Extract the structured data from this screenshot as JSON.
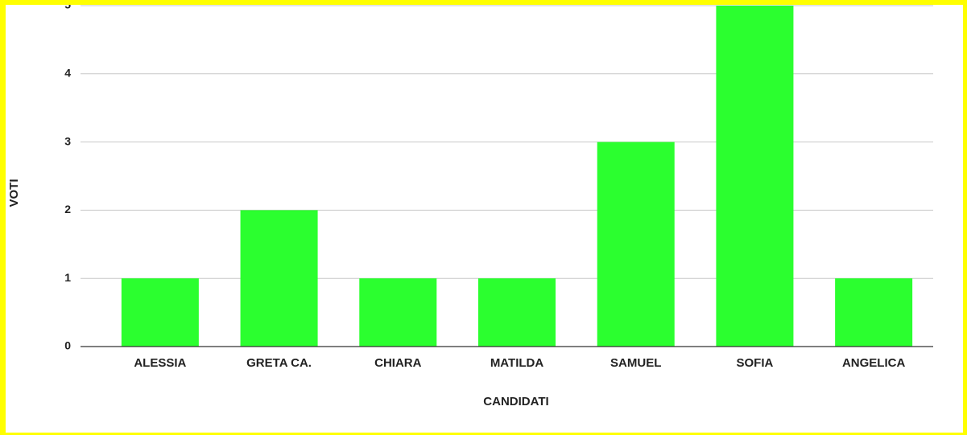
{
  "chart_data": {
    "type": "bar",
    "x_label": "CANDIDATI",
    "y_label": "VOTI",
    "categories": [
      "ALESSIA",
      "GRETA CA.",
      "CHIARA",
      "MATILDA",
      "SAMUEL",
      "SOFIA",
      "ANGELICA"
    ],
    "values": [
      1,
      2,
      1,
      1,
      3,
      5,
      1
    ],
    "color": "#2bff2f",
    "ylim": [
      0,
      5
    ],
    "yticks": [
      0,
      1,
      2,
      3,
      4,
      5
    ],
    "grid": true
  }
}
